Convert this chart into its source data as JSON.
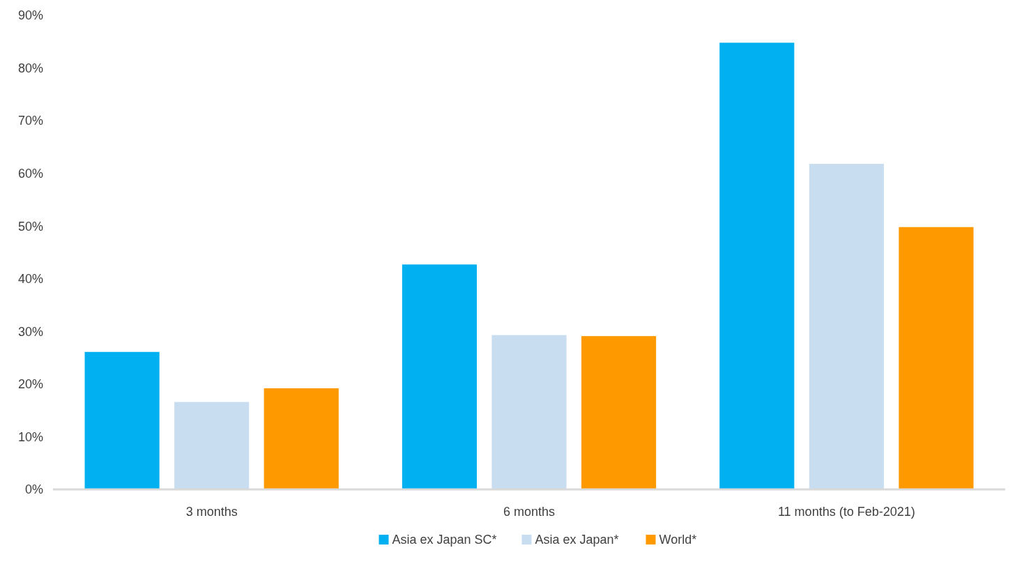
{
  "chart_data": {
    "type": "bar",
    "categories": [
      "3 months",
      "6 months",
      "11 months (to Feb-2021)"
    ],
    "series": [
      {
        "name": "Asia ex Japan SC*",
        "color": "#00b0f0",
        "values": [
          26.1,
          42.7,
          84.8
        ]
      },
      {
        "name": "Asia ex Japan*",
        "color": "#c9ddf1",
        "values": [
          16.6,
          29.3,
          61.8
        ]
      },
      {
        "name": "World*",
        "color": "#ff9900",
        "values": [
          19.2,
          29.1,
          49.8
        ]
      }
    ],
    "ylim": [
      0,
      90
    ],
    "yticks": [
      {
        "value": 0,
        "label": "0%"
      },
      {
        "value": 10,
        "label": "10%"
      },
      {
        "value": 20,
        "label": "20%"
      },
      {
        "value": 30,
        "label": "30%"
      },
      {
        "value": 40,
        "label": "40%"
      },
      {
        "value": 50,
        "label": "50%"
      },
      {
        "value": 60,
        "label": "60%"
      },
      {
        "value": 70,
        "label": "70%"
      },
      {
        "value": 80,
        "label": "80%"
      },
      {
        "value": 90,
        "label": "90%"
      }
    ],
    "grid": false,
    "legend": "bottom"
  }
}
